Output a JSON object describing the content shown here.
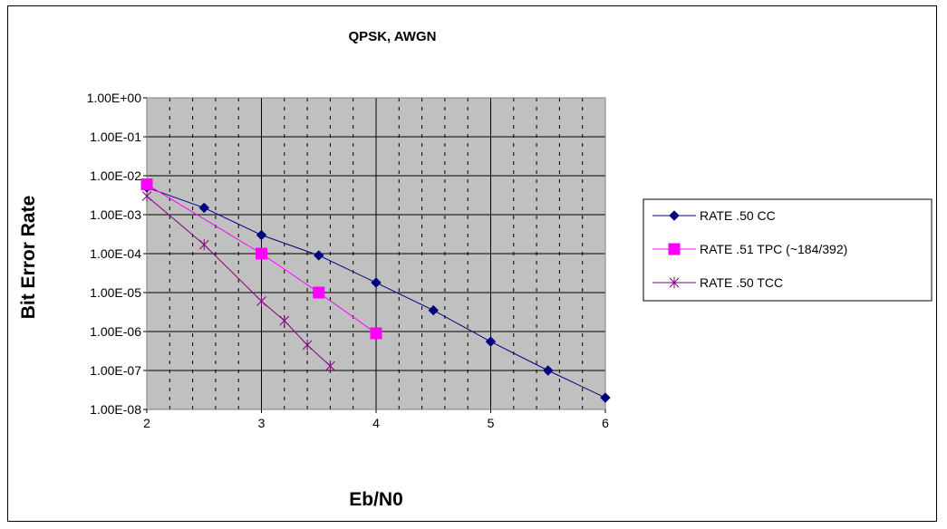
{
  "chart_data": {
    "type": "line",
    "title": "QPSK, AWGN",
    "xlabel": "Eb/N0",
    "ylabel": "Bit Error Rate",
    "x_ticks": [
      "2",
      "3",
      "4",
      "5",
      "6"
    ],
    "y_ticks": [
      "1.00E+00",
      "1.00E-01",
      "1.00E-02",
      "1.00E-03",
      "1.00E-04",
      "1.00E-05",
      "1.00E-06",
      "1.00E-07",
      "1.00E-08"
    ],
    "xlim": [
      2,
      6
    ],
    "ylim": [
      1e-08,
      1
    ],
    "y_scale": "log",
    "grid": true,
    "plot_background": "#c0c0c0",
    "legend_position": "right",
    "series": [
      {
        "name": "RATE .50 CC",
        "color": "#000080",
        "marker": "diamond",
        "x": [
          2,
          2.5,
          3,
          3.5,
          4,
          4.5,
          5,
          5.5,
          6
        ],
        "y": [
          0.005,
          0.0015,
          0.0003,
          9e-05,
          1.8e-05,
          3.5e-06,
          5.5e-07,
          1e-07,
          2e-08
        ]
      },
      {
        "name": "RATE .51 TPC (~184/392)",
        "color": "#ff00ff",
        "marker": "square",
        "x": [
          2,
          3,
          3.5,
          4
        ],
        "y": [
          0.006,
          0.0001,
          1e-05,
          9e-07
        ]
      },
      {
        "name": "RATE .50 TCC",
        "color": "#800080",
        "marker": "asterisk",
        "x": [
          2,
          2.5,
          3,
          3.2,
          3.4,
          3.6
        ],
        "y": [
          0.003,
          0.00017,
          6e-06,
          1.9e-06,
          4.5e-07,
          1.3e-07
        ]
      }
    ]
  }
}
